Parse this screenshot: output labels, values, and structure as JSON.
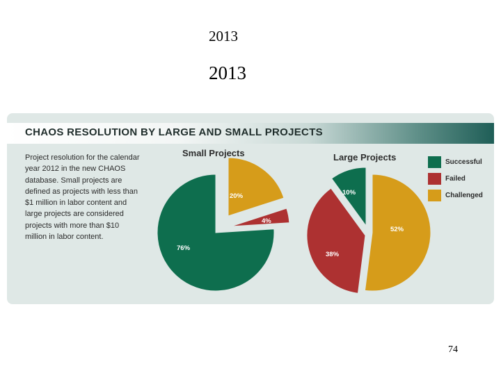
{
  "slide": {
    "title_1": "2013",
    "title_2": "2013",
    "page_number": "74"
  },
  "panel": {
    "title": "CHAOS RESOLUTION BY LARGE AND SMALL PROJECTS",
    "description": "Project resolution for the calendar year 2012 in the new CHAOS database. Small projects are defined as projects with less than $1 million in labor content and large projects are considered projects with more than $10 million in labor content."
  },
  "colors": {
    "successful": "#0e6e4e",
    "failed": "#ad3131",
    "challenged": "#d69c1a"
  },
  "chart_data": {
    "type": "pie",
    "title": "CHAOS RESOLUTION BY LARGE AND SMALL PROJECTS",
    "legend": [
      "Successful",
      "Failed",
      "Challenged"
    ],
    "charts": [
      {
        "title": "Small Projects",
        "slices": [
          {
            "label": "Successful",
            "value": 76,
            "display": "76%"
          },
          {
            "label": "Failed",
            "value": 4,
            "display": "4%"
          },
          {
            "label": "Challenged",
            "value": 20,
            "display": "20%"
          }
        ]
      },
      {
        "title": "Large Projects",
        "slices": [
          {
            "label": "Successful",
            "value": 10,
            "display": "10%"
          },
          {
            "label": "Failed",
            "value": 38,
            "display": "38%"
          },
          {
            "label": "Challenged",
            "value": 52,
            "display": "52%"
          }
        ]
      }
    ]
  }
}
